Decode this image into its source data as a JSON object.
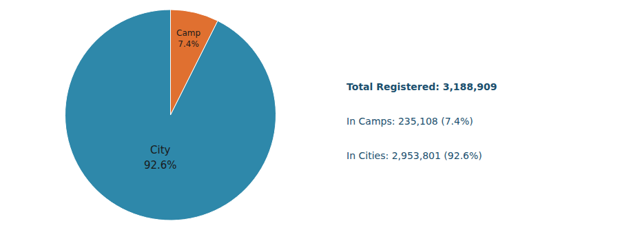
{
  "chart_data": {
    "type": "pie",
    "categories": [
      "Camp",
      "City"
    ],
    "values": [
      7.4,
      92.6
    ],
    "value_labels": [
      "7.4%",
      "92.6%"
    ],
    "colors": [
      "#E07030",
      "#2E88AA"
    ],
    "data_labels": true,
    "annotations": [
      "Total Registered: 3,188,909",
      "In Camps: 235,108 (7.4%)",
      "In Cities: 2,953,801 (92.6%)"
    ]
  }
}
